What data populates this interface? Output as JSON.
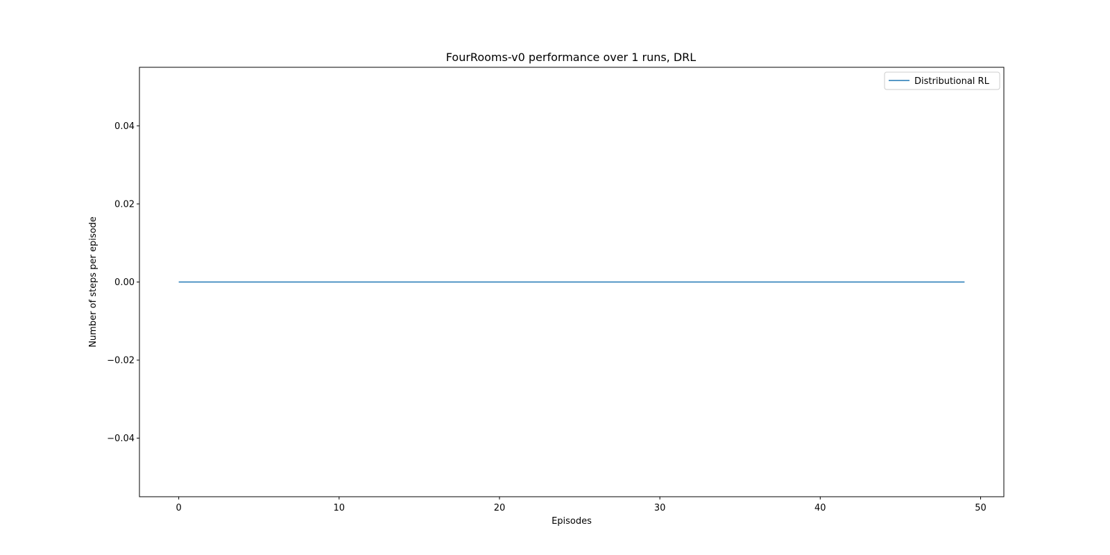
{
  "chart_data": {
    "type": "line",
    "title": "FourRooms-v0 performance over 1 runs, DRL",
    "xlabel": "Episodes",
    "ylabel": "Number of steps per episode",
    "xlim": [
      -2.45,
      51.45
    ],
    "ylim": [
      -0.055,
      0.055
    ],
    "xticks": [
      0,
      10,
      20,
      30,
      40,
      50
    ],
    "xtick_labels": [
      "0",
      "10",
      "20",
      "30",
      "40",
      "50"
    ],
    "yticks": [
      -0.04,
      -0.02,
      0.0,
      0.02,
      0.04
    ],
    "ytick_labels": [
      "−0.04",
      "−0.02",
      "0.00",
      "0.02",
      "0.04"
    ],
    "grid": false,
    "legend_position": "top-right",
    "series": [
      {
        "name": "Distributional RL",
        "color": "#1f77b4",
        "x": [
          0,
          49
        ],
        "y": [
          0,
          0
        ]
      }
    ]
  }
}
